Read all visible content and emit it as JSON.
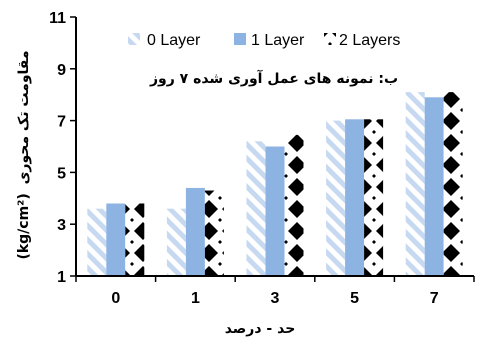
{
  "chart_data": {
    "type": "bar",
    "subtitle": "ب: نمونه های عمل آوری شده ۷ روز",
    "xlabel": "حد - درصد",
    "ylabel_text": "مقاومت تک محوری",
    "ylabel_unit": "(kg/cm²)",
    "categories": [
      "0",
      "1",
      "3",
      "5",
      "7"
    ],
    "ylim": [
      1,
      11
    ],
    "yticks": [
      1,
      3,
      5,
      7,
      9,
      11
    ],
    "grid": false,
    "legend_position": "top",
    "series": [
      {
        "name": "0 Layer",
        "values": [
          3.6,
          3.6,
          6.2,
          7.0,
          8.1
        ],
        "color": "#c6d9f1",
        "pattern": "diagonal-stripes"
      },
      {
        "name": "1 Layer",
        "values": [
          3.8,
          4.4,
          6.0,
          7.05,
          7.9
        ],
        "color": "#8db3e2",
        "pattern": "solid"
      },
      {
        "name": "2 Layers",
        "values": [
          3.8,
          4.3,
          6.45,
          7.05,
          8.1
        ],
        "color": "#000000",
        "pattern": "diamonds"
      }
    ]
  }
}
